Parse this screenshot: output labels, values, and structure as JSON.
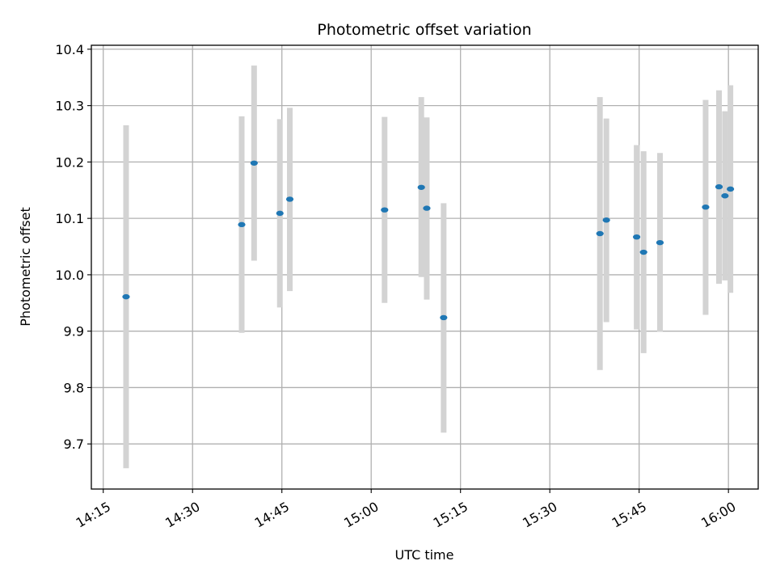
{
  "chart_data": {
    "type": "scatter",
    "title": "Photometric offset variation",
    "xlabel": "UTC time",
    "ylabel": "Photometric offset",
    "x_axis_type": "time",
    "xlim": [
      "14:13",
      "16:05"
    ],
    "ylim": [
      9.62,
      10.407
    ],
    "x_ticks": [
      "14:15",
      "14:30",
      "14:45",
      "15:00",
      "15:15",
      "15:30",
      "15:45",
      "16:00"
    ],
    "y_ticks": [
      "9.7",
      "9.8",
      "9.9",
      "10.0",
      "10.1",
      "10.2",
      "10.3",
      "10.4"
    ],
    "grid": true,
    "point_color": "#1f77b4",
    "errorbar_color": "#d3d3d3",
    "series": [
      {
        "points": [
          {
            "time": "14:18:50",
            "y": 9.961,
            "low": 9.657,
            "high": 10.265
          },
          {
            "time": "14:38:15",
            "y": 10.089,
            "low": 9.897,
            "high": 10.281
          },
          {
            "time": "14:40:20",
            "y": 10.198,
            "low": 10.025,
            "high": 10.371
          },
          {
            "time": "14:44:40",
            "y": 10.109,
            "low": 9.942,
            "high": 10.276
          },
          {
            "time": "14:46:20",
            "y": 10.134,
            "low": 9.971,
            "high": 10.296
          },
          {
            "time": "15:02:15",
            "y": 10.115,
            "low": 9.95,
            "high": 10.28
          },
          {
            "time": "15:08:25",
            "y": 10.155,
            "low": 9.996,
            "high": 10.315
          },
          {
            "time": "15:09:20",
            "y": 10.118,
            "low": 9.956,
            "high": 10.279
          },
          {
            "time": "15:12:10",
            "y": 9.924,
            "low": 9.72,
            "high": 10.127
          },
          {
            "time": "15:38:25",
            "y": 10.073,
            "low": 9.831,
            "high": 10.315
          },
          {
            "time": "15:39:30",
            "y": 10.097,
            "low": 9.916,
            "high": 10.277
          },
          {
            "time": "15:44:35",
            "y": 10.067,
            "low": 9.903,
            "high": 10.23
          },
          {
            "time": "15:45:45",
            "y": 10.04,
            "low": 9.861,
            "high": 10.219
          },
          {
            "time": "15:48:30",
            "y": 10.057,
            "low": 9.899,
            "high": 10.216
          },
          {
            "time": "15:56:10",
            "y": 10.12,
            "low": 9.929,
            "high": 10.31
          },
          {
            "time": "15:58:25",
            "y": 10.156,
            "low": 9.984,
            "high": 10.327
          },
          {
            "time": "15:59:25",
            "y": 10.14,
            "low": 9.99,
            "high": 10.29
          },
          {
            "time": "16:00:20",
            "y": 10.152,
            "low": 9.968,
            "high": 10.336
          }
        ]
      }
    ]
  }
}
